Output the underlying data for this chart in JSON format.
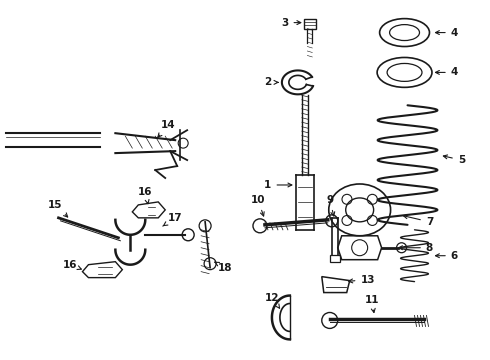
{
  "background_color": "#ffffff",
  "line_color": "#1a1a1a",
  "figure_width": 4.9,
  "figure_height": 3.6,
  "dpi": 100
}
